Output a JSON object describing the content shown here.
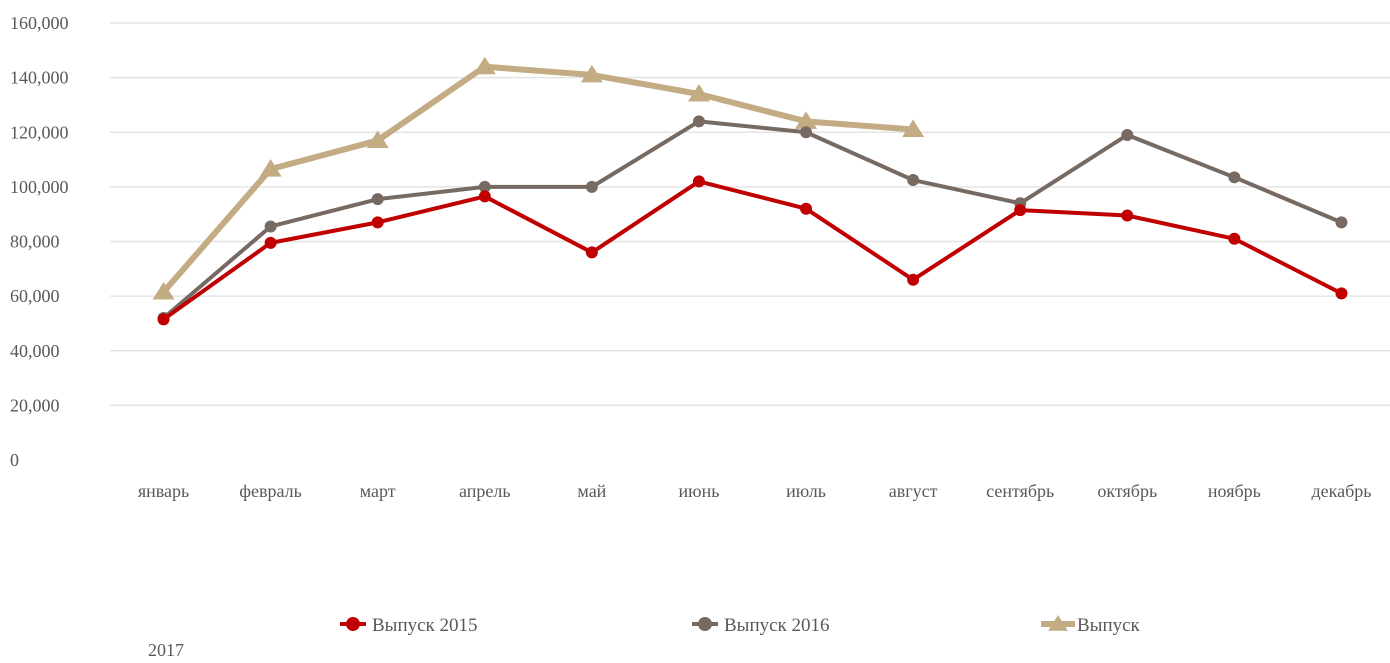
{
  "chart_data": {
    "type": "line",
    "categories": [
      "январь",
      "февраль",
      "март",
      "апрель",
      "май",
      "июнь",
      "июль",
      "август",
      "сентябрь",
      "октябрь",
      "ноябрь",
      "декабрь"
    ],
    "ylim": [
      0,
      160000
    ],
    "yticks": [
      "0",
      "20,000",
      "40,000",
      "60,000",
      "80,000",
      "100,000",
      "120,000",
      "140,000",
      "160,000"
    ],
    "grid": true,
    "legend_position": "bottom",
    "series": [
      {
        "name": "Выпуск 2015",
        "color": "#C00000",
        "marker": "circle",
        "values": [
          51500,
          79500,
          87000,
          96500,
          76000,
          102000,
          92000,
          66000,
          91500,
          89500,
          81000,
          61000
        ]
      },
      {
        "name": "Выпуск 2016",
        "color": "#766A62",
        "marker": "circle",
        "values": [
          52000,
          85500,
          95500,
          100000,
          100000,
          124000,
          120000,
          102500,
          94000,
          119000,
          103500,
          87000
        ]
      },
      {
        "name": "Выпуск",
        "color": "#C3AC84",
        "marker": "triangle",
        "values": [
          61500,
          106500,
          117000,
          144000,
          141000,
          134000,
          124000,
          121000,
          null,
          null,
          null,
          null
        ]
      }
    ]
  },
  "legend_extra_text": "2017"
}
